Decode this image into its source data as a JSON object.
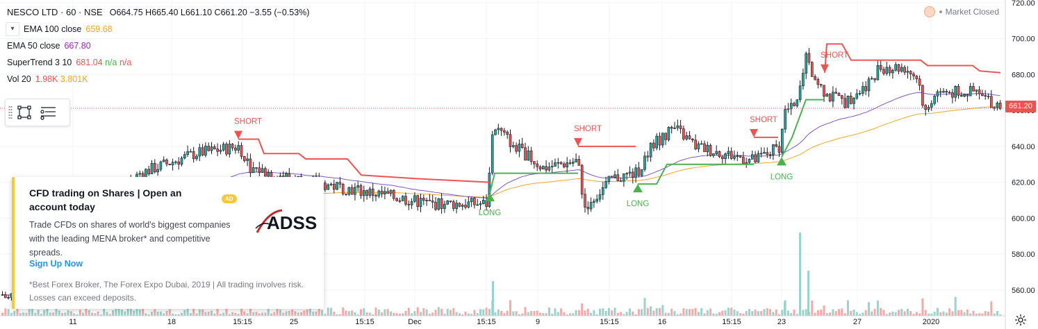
{
  "header": {
    "symbol": "NESCO LTD · 60 · NSE",
    "ohlc": "O664.75 H665.40 L661.10 C661.20 −3.55 (−0.53%)"
  },
  "indicators": {
    "ema100": {
      "name": "EMA 100 close",
      "value": "659.68"
    },
    "ema50": {
      "name": "EMA 50 close",
      "value": "667.80"
    },
    "supertrend": {
      "name": "SuperTrend 3 10",
      "value": "681.04",
      "na1": "n/a",
      "na2": "n/a"
    },
    "vol": {
      "name": "Vol 20",
      "v1": "1.98K",
      "v2": "3.801K"
    }
  },
  "market_status": "Market Closed",
  "price_axis": {
    "ticks": [
      "720.00",
      "700.00",
      "680.00",
      "660.00",
      "640.00",
      "620.00",
      "600.00",
      "580.00",
      "560.00"
    ],
    "current_price": "661.20"
  },
  "time_axis": [
    "11",
    "18",
    "15:15",
    "25",
    "15:15",
    "Dec",
    "15:15",
    "9",
    "15:15",
    "16",
    "15:15",
    "23",
    "27",
    "2020"
  ],
  "signals": {
    "short": "SHORT",
    "long": "LONG"
  },
  "ad": {
    "title": "CFD trading on Shares | Open an account today",
    "badge": "AD",
    "body": "Trade CFDs on shares of world's biggest companies with the leading MENA broker* and competitive spreads.",
    "cta": "Sign Up Now",
    "disclaimer": "*Best Forex Broker, The Forex Expo Dubai, 2019 | All trading involves risk. Losses can exceed deposits.",
    "logo_text": "ADSS"
  },
  "colors": {
    "up": "#26a69a",
    "down": "#ef5350",
    "ema100": "#f5a623",
    "ema50": "#7e57c2",
    "st_up": "#4caf50",
    "st_down": "#ef5350",
    "grid": "#f0f3fa"
  },
  "icons": [
    "eye-toggle-icon",
    "rectangle-icon",
    "object-tree-icon",
    "sun-icon",
    "scale-settings-icon"
  ],
  "chart_data": {
    "type": "candlestick",
    "title": "NESCO LTD · 60 · NSE",
    "ylim": [
      549,
      722
    ],
    "price_levels": [
      720,
      700,
      680,
      660,
      640,
      620,
      600,
      580,
      560
    ],
    "supertrend_down": [
      [
        [
          343,
          644
        ],
        [
          350,
          644
        ],
        [
          372,
          644
        ],
        [
          380,
          636
        ],
        [
          430,
          636
        ],
        [
          440,
          633
        ],
        [
          500,
          633
        ],
        [
          520,
          624
        ],
        [
          600,
          622
        ],
        [
          705,
          620
        ]
      ],
      [
        [
          832,
          640
        ],
        [
          915,
          640
        ]
      ],
      [
        [
          1085,
          645
        ],
        [
          1120,
          645
        ]
      ],
      [
        [
          1187,
          681
        ],
        [
          1190,
          697
        ],
        [
          1212,
          697
        ],
        [
          1225,
          688
        ],
        [
          1325,
          688
        ],
        [
          1335,
          685
        ],
        [
          1400,
          685
        ],
        [
          1410,
          682
        ],
        [
          1440,
          681
        ]
      ]
    ],
    "supertrend_up": [
      [
        [
          705,
          614
        ],
        [
          712,
          625
        ],
        [
          832,
          625
        ]
      ],
      [
        [
          918,
          619
        ],
        [
          945,
          619
        ],
        [
          960,
          630
        ],
        [
          1085,
          630
        ]
      ],
      [
        [
          1125,
          634
        ],
        [
          1140,
          645
        ],
        [
          1160,
          666
        ],
        [
          1187,
          666
        ]
      ]
    ],
    "short_signals": [
      [
        343,
        644
      ],
      [
        832,
        640
      ],
      [
        1085,
        645
      ],
      [
        1187,
        681
      ]
    ],
    "long_signals": [
      [
        705,
        614
      ],
      [
        918,
        619
      ],
      [
        1125,
        634
      ]
    ]
  }
}
